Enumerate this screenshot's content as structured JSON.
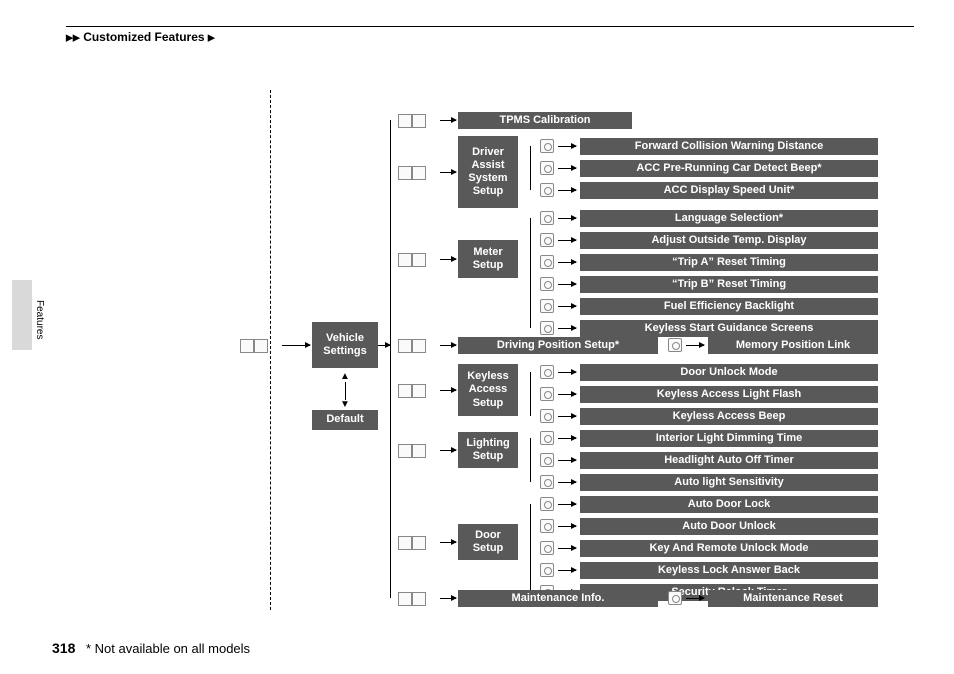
{
  "breadcrumb": "Customized Features",
  "side_label": "Features",
  "page_number": "318",
  "footnote": "* Not available on all models",
  "root": {
    "vehicle_settings": "Vehicle\nSettings",
    "default": "Default"
  },
  "level2": {
    "tpms": "TPMS Calibration",
    "driver_assist": "Driver\nAssist\nSystem\nSetup",
    "meter": "Meter\nSetup",
    "driving_pos": "Driving Position Setup*",
    "keyless": "Keyless\nAccess\nSetup",
    "lighting": "Lighting\nSetup",
    "door": "Door\nSetup",
    "maintenance": "Maintenance Info."
  },
  "leaves": {
    "fcw": "Forward Collision Warning Distance",
    "acc_beep": "ACC Pre-Running Car Detect Beep*",
    "acc_speed": "ACC Display Speed Unit*",
    "lang": "Language Selection*",
    "temp": "Adjust Outside Temp. Display",
    "tripa": "“Trip A” Reset Timing",
    "tripb": "“Trip B” Reset Timing",
    "fuel": "Fuel Efficiency Backlight",
    "keyless_guide": "Keyless Start Guidance Screens",
    "mem_pos": "Memory Position Link",
    "door_unlock": "Door Unlock Mode",
    "keyless_flash": "Keyless Access Light Flash",
    "keyless_beep": "Keyless Access Beep",
    "dimming": "Interior Light Dimming Time",
    "headlight": "Headlight Auto Off Timer",
    "autolight": "Auto light Sensitivity",
    "autolock": "Auto Door Lock",
    "autounlock": "Auto Door Unlock",
    "keyremote": "Key And Remote Unlock Mode",
    "answerback": "Keyless Lock Answer Back",
    "relock": "Security Relock Timer",
    "maint_reset": "Maintenance Reset"
  },
  "colors": {
    "bar_bg": "#595959",
    "bar_fg": "#ffffff",
    "page_bg": "#ffffff"
  }
}
